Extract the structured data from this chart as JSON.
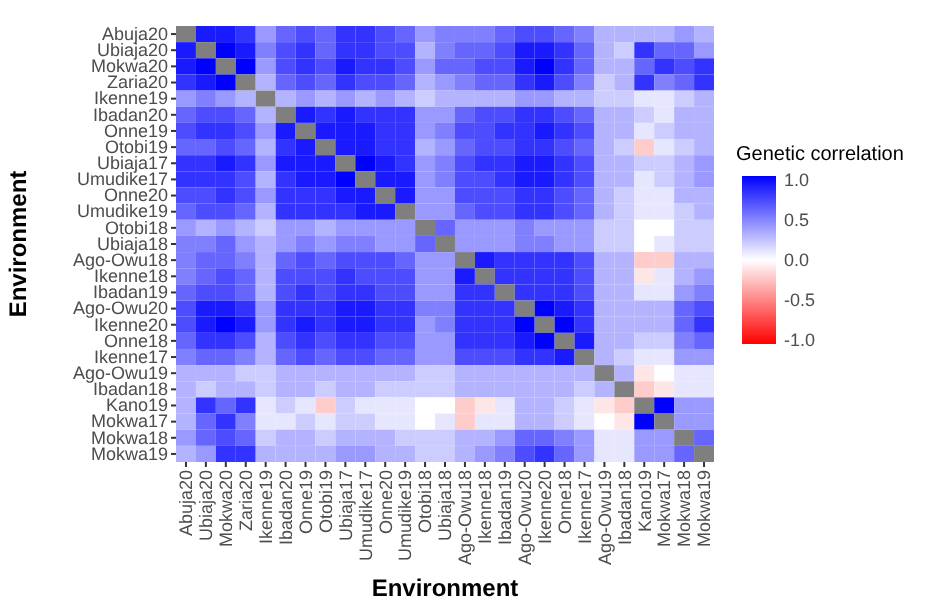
{
  "chart_data": {
    "type": "heatmap",
    "xlabel": "Environment",
    "ylabel": "Environment",
    "clabel": "Genetic correlation",
    "categories": [
      "Abuja20",
      "Ubiaja20",
      "Mokwa20",
      "Zaria20",
      "Ikenne19",
      "Ibadan20",
      "Onne19",
      "Otobi19",
      "Ubiaja17",
      "Umudike17",
      "Onne20",
      "Umudike19",
      "Otobi18",
      "Ubiaja18",
      "Ago-Owu18",
      "Ikenne18",
      "Ibadan19",
      "Ago-Owu20",
      "Ikenne20",
      "Onne18",
      "Ikenne17",
      "Ago-Owu19",
      "Ibadan18",
      "Kano19",
      "Mokwa17",
      "Mokwa18",
      "Mokwa19"
    ],
    "y_categories": [
      "Abuja20",
      "Ubiaja20",
      "Mokwa20",
      "Zaria20",
      "Ikenne19",
      "Ibadan20",
      "Onne19",
      "Otobi19",
      "Ubiaja17",
      "Umudike17",
      "Onne20",
      "Umudike19",
      "Otobi18",
      "Ubiaja18",
      "Ago-Owu18",
      "Ikenne18",
      "Ibadan19",
      "Ago-Owu20",
      "Ikenne20",
      "Onne18",
      "Ikenne17",
      "Ago-Owu19",
      "Ibadan18",
      "Kano19",
      "Mokwa17",
      "Mokwa18",
      "Mokwa19"
    ],
    "cells": [
      [
        null,
        0.9,
        0.9,
        0.8,
        0.4,
        0.6,
        0.7,
        0.6,
        0.8,
        0.8,
        0.7,
        0.6,
        0.4,
        0.5,
        0.5,
        0.5,
        0.6,
        0.7,
        0.7,
        0.6,
        0.5,
        0.3,
        0.3,
        0.3,
        0.3,
        0.4,
        0.3
      ],
      [
        0.9,
        null,
        1.0,
        0.9,
        0.5,
        0.7,
        0.8,
        0.6,
        0.8,
        0.8,
        0.7,
        0.7,
        0.3,
        0.5,
        0.6,
        0.6,
        0.7,
        0.9,
        0.9,
        0.8,
        0.6,
        0.3,
        0.2,
        0.8,
        0.6,
        0.6,
        0.4
      ],
      [
        0.9,
        1.0,
        null,
        1.0,
        0.4,
        0.7,
        0.8,
        0.7,
        0.9,
        0.8,
        0.8,
        0.7,
        0.4,
        0.6,
        0.6,
        0.7,
        0.7,
        0.9,
        1.0,
        0.8,
        0.6,
        0.3,
        0.3,
        0.6,
        0.8,
        0.7,
        0.8
      ],
      [
        0.8,
        0.9,
        1.0,
        null,
        0.3,
        0.6,
        0.7,
        0.6,
        0.8,
        0.7,
        0.7,
        0.6,
        0.3,
        0.4,
        0.5,
        0.6,
        0.6,
        0.8,
        0.9,
        0.7,
        0.5,
        0.2,
        0.3,
        0.8,
        0.5,
        0.6,
        0.8
      ],
      [
        0.4,
        0.5,
        0.4,
        0.3,
        null,
        0.3,
        0.4,
        0.3,
        0.4,
        0.3,
        0.4,
        0.3,
        0.2,
        0.3,
        0.3,
        0.3,
        0.3,
        0.4,
        0.4,
        0.3,
        0.3,
        0.2,
        0.2,
        0.1,
        0.1,
        0.2,
        0.3
      ],
      [
        0.6,
        0.7,
        0.7,
        0.6,
        0.3,
        null,
        0.9,
        0.8,
        0.9,
        0.8,
        0.8,
        0.8,
        0.4,
        0.4,
        0.6,
        0.7,
        0.7,
        0.8,
        0.8,
        0.7,
        0.6,
        0.3,
        0.3,
        0.2,
        0.1,
        0.3,
        0.3
      ],
      [
        0.7,
        0.8,
        0.8,
        0.7,
        0.4,
        0.9,
        null,
        0.9,
        0.9,
        0.9,
        0.8,
        0.8,
        0.4,
        0.5,
        0.7,
        0.7,
        0.8,
        0.8,
        0.9,
        0.8,
        0.7,
        0.3,
        0.3,
        0.1,
        0.2,
        0.3,
        0.3
      ],
      [
        0.6,
        0.6,
        0.7,
        0.6,
        0.3,
        0.8,
        0.9,
        null,
        0.9,
        0.9,
        0.8,
        0.8,
        0.3,
        0.4,
        0.6,
        0.7,
        0.7,
        0.8,
        0.8,
        0.7,
        0.6,
        0.3,
        0.2,
        -0.2,
        0.1,
        0.2,
        0.3
      ],
      [
        0.8,
        0.8,
        0.9,
        0.8,
        0.4,
        0.9,
        0.9,
        0.9,
        null,
        1.0,
        0.9,
        0.8,
        0.4,
        0.5,
        0.7,
        0.8,
        0.8,
        0.9,
        0.9,
        0.8,
        0.7,
        0.3,
        0.3,
        0.2,
        0.2,
        0.3,
        0.4
      ],
      [
        0.8,
        0.8,
        0.8,
        0.7,
        0.3,
        0.8,
        0.9,
        0.9,
        1.0,
        null,
        0.9,
        0.9,
        0.4,
        0.5,
        0.7,
        0.7,
        0.8,
        0.9,
        0.9,
        0.8,
        0.7,
        0.3,
        0.3,
        0.1,
        0.2,
        0.3,
        0.4
      ],
      [
        0.7,
        0.7,
        0.8,
        0.7,
        0.4,
        0.8,
        0.8,
        0.8,
        0.9,
        0.9,
        null,
        0.9,
        0.4,
        0.4,
        0.7,
        0.7,
        0.7,
        0.8,
        0.8,
        0.7,
        0.6,
        0.3,
        0.2,
        0.1,
        0.1,
        0.3,
        0.3
      ],
      [
        0.6,
        0.7,
        0.7,
        0.6,
        0.3,
        0.8,
        0.8,
        0.8,
        0.8,
        0.9,
        0.9,
        null,
        0.4,
        0.4,
        0.6,
        0.7,
        0.7,
        0.8,
        0.8,
        0.7,
        0.6,
        0.3,
        0.2,
        0.1,
        0.1,
        0.2,
        0.3
      ],
      [
        0.4,
        0.3,
        0.4,
        0.3,
        0.2,
        0.4,
        0.4,
        0.3,
        0.4,
        0.4,
        0.4,
        0.4,
        null,
        0.6,
        0.4,
        0.4,
        0.4,
        0.5,
        0.4,
        0.4,
        0.4,
        0.2,
        0.2,
        0.0,
        0.0,
        0.2,
        0.2
      ],
      [
        0.5,
        0.5,
        0.6,
        0.4,
        0.3,
        0.4,
        0.5,
        0.4,
        0.5,
        0.5,
        0.4,
        0.4,
        0.6,
        null,
        0.4,
        0.4,
        0.4,
        0.5,
        0.5,
        0.4,
        0.4,
        0.2,
        0.2,
        0.0,
        0.1,
        0.2,
        0.2
      ],
      [
        0.5,
        0.6,
        0.6,
        0.5,
        0.3,
        0.6,
        0.7,
        0.6,
        0.7,
        0.7,
        0.7,
        0.6,
        0.4,
        0.4,
        null,
        0.9,
        0.8,
        0.8,
        0.8,
        0.8,
        0.7,
        0.3,
        0.3,
        -0.2,
        -0.2,
        0.3,
        0.3
      ],
      [
        0.5,
        0.6,
        0.7,
        0.6,
        0.3,
        0.7,
        0.7,
        0.7,
        0.8,
        0.7,
        0.7,
        0.7,
        0.4,
        0.4,
        0.9,
        null,
        0.8,
        0.8,
        0.8,
        0.8,
        0.7,
        0.3,
        0.3,
        -0.1,
        0.1,
        0.3,
        0.4
      ],
      [
        0.6,
        0.7,
        0.7,
        0.6,
        0.3,
        0.7,
        0.8,
        0.7,
        0.8,
        0.8,
        0.7,
        0.7,
        0.4,
        0.4,
        0.8,
        0.8,
        null,
        0.8,
        0.8,
        0.8,
        0.7,
        0.3,
        0.3,
        0.1,
        0.1,
        0.4,
        0.5
      ],
      [
        0.7,
        0.9,
        0.9,
        0.8,
        0.4,
        0.8,
        0.8,
        0.8,
        0.9,
        0.9,
        0.8,
        0.8,
        0.5,
        0.5,
        0.8,
        0.8,
        0.8,
        null,
        1.0,
        0.9,
        0.8,
        0.3,
        0.3,
        0.3,
        0.3,
        0.6,
        0.7
      ],
      [
        0.7,
        0.9,
        1.0,
        0.9,
        0.4,
        0.8,
        0.9,
        0.8,
        0.9,
        0.9,
        0.8,
        0.8,
        0.4,
        0.5,
        0.8,
        0.8,
        0.8,
        1.0,
        null,
        1.0,
        0.8,
        0.3,
        0.3,
        0.3,
        0.3,
        0.6,
        0.8
      ],
      [
        0.6,
        0.8,
        0.8,
        0.7,
        0.3,
        0.7,
        0.8,
        0.7,
        0.8,
        0.8,
        0.7,
        0.7,
        0.4,
        0.4,
        0.8,
        0.8,
        0.8,
        0.9,
        1.0,
        null,
        0.9,
        0.3,
        0.3,
        0.2,
        0.2,
        0.5,
        0.6
      ],
      [
        0.5,
        0.6,
        0.6,
        0.5,
        0.3,
        0.6,
        0.7,
        0.6,
        0.7,
        0.7,
        0.6,
        0.6,
        0.4,
        0.4,
        0.7,
        0.7,
        0.7,
        0.8,
        0.8,
        0.9,
        null,
        0.3,
        0.2,
        0.1,
        0.1,
        0.4,
        0.4
      ],
      [
        0.3,
        0.3,
        0.3,
        0.2,
        0.2,
        0.3,
        0.3,
        0.3,
        0.3,
        0.3,
        0.3,
        0.3,
        0.2,
        0.2,
        0.3,
        0.3,
        0.3,
        0.3,
        0.3,
        0.3,
        0.3,
        null,
        0.3,
        -0.1,
        0.0,
        0.1,
        0.1
      ],
      [
        0.3,
        0.2,
        0.3,
        0.3,
        0.2,
        0.3,
        0.3,
        0.2,
        0.3,
        0.3,
        0.2,
        0.2,
        0.2,
        0.2,
        0.3,
        0.3,
        0.3,
        0.3,
        0.3,
        0.3,
        0.2,
        0.3,
        null,
        -0.2,
        -0.1,
        0.1,
        0.1
      ],
      [
        0.3,
        0.8,
        0.6,
        0.8,
        0.1,
        0.2,
        0.1,
        -0.2,
        0.2,
        0.1,
        0.1,
        0.1,
        0.0,
        0.0,
        -0.2,
        -0.1,
        0.1,
        0.3,
        0.3,
        0.2,
        0.1,
        -0.1,
        -0.2,
        null,
        1.0,
        0.4,
        0.4
      ],
      [
        0.3,
        0.6,
        0.8,
        0.5,
        0.1,
        0.1,
        0.2,
        0.1,
        0.2,
        0.2,
        0.1,
        0.1,
        0.0,
        0.1,
        -0.2,
        0.1,
        0.1,
        0.3,
        0.3,
        0.2,
        0.1,
        0.0,
        -0.1,
        1.0,
        null,
        0.4,
        0.4
      ],
      [
        0.4,
        0.6,
        0.7,
        0.6,
        0.2,
        0.3,
        0.3,
        0.2,
        0.3,
        0.3,
        0.3,
        0.2,
        0.2,
        0.2,
        0.3,
        0.3,
        0.4,
        0.6,
        0.6,
        0.5,
        0.4,
        0.1,
        0.1,
        0.4,
        0.4,
        null,
        0.6
      ],
      [
        0.3,
        0.4,
        0.8,
        0.8,
        0.3,
        0.3,
        0.3,
        0.3,
        0.4,
        0.4,
        0.3,
        0.3,
        0.2,
        0.2,
        0.3,
        0.4,
        0.5,
        0.7,
        0.8,
        0.6,
        0.4,
        0.1,
        0.1,
        0.4,
        0.4,
        0.6,
        null
      ]
    ],
    "clim": [
      -1,
      1
    ],
    "cticks": [
      {
        "value": -1,
        "label": "-1.0"
      },
      {
        "value": -0.5,
        "label": "-0.5"
      },
      {
        "value": 0,
        "label": "0.0"
      },
      {
        "value": 0.5,
        "label": "0.5"
      },
      {
        "value": 1,
        "label": "1.0"
      }
    ]
  }
}
